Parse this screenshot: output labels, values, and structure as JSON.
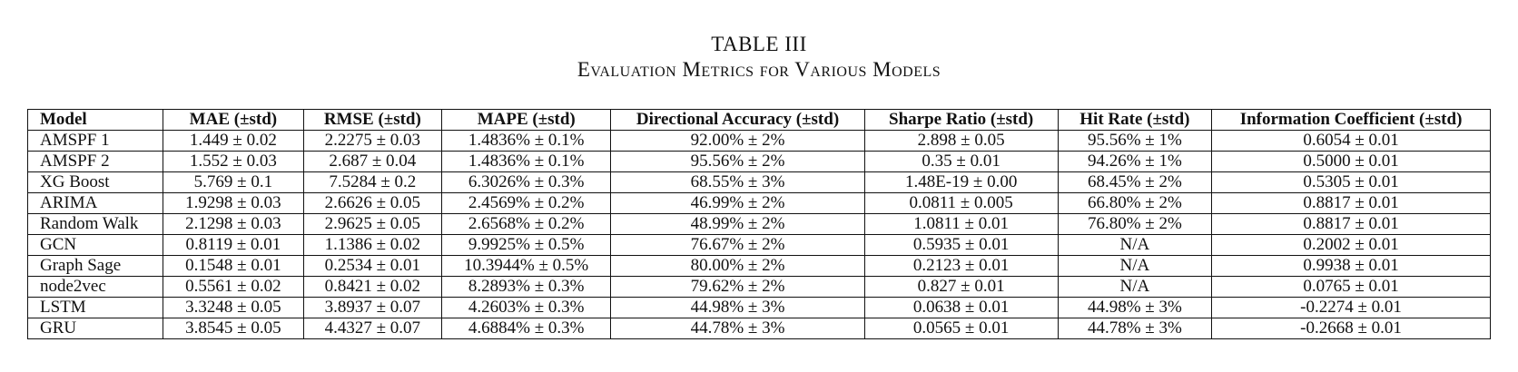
{
  "caption": {
    "number": "TABLE III",
    "title": "Evaluation Metrics for Various Models"
  },
  "table": {
    "headers": [
      "Model",
      "MAE (±std)",
      "RMSE (±std)",
      "MAPE (±std)",
      "Directional Accuracy (±std)",
      "Sharpe Ratio (±std)",
      "Hit Rate (±std)",
      "Information Coefficient (±std)"
    ],
    "rows": [
      [
        "AMSPF 1",
        "1.449 ± 0.02",
        "2.2275 ± 0.03",
        "1.4836% ± 0.1%",
        "92.00% ± 2%",
        "2.898 ± 0.05",
        "95.56% ± 1%",
        "0.6054 ± 0.01"
      ],
      [
        "AMSPF 2",
        "1.552 ± 0.03",
        "2.687 ± 0.04",
        "1.4836% ± 0.1%",
        "95.56% ± 2%",
        "0.35 ± 0.01",
        "94.26% ± 1%",
        "0.5000 ± 0.01"
      ],
      [
        "XG Boost",
        "5.769 ± 0.1",
        "7.5284 ± 0.2",
        "6.3026% ± 0.3%",
        "68.55% ± 3%",
        "1.48E-19 ± 0.00",
        "68.45% ± 2%",
        "0.5305 ± 0.01"
      ],
      [
        "ARIMA",
        "1.9298 ± 0.03",
        "2.6626 ± 0.05",
        "2.4569% ± 0.2%",
        "46.99% ± 2%",
        "0.0811 ± 0.005",
        "66.80% ± 2%",
        "0.8817 ± 0.01"
      ],
      [
        "Random Walk",
        "2.1298 ± 0.03",
        "2.9625 ± 0.05",
        "2.6568% ± 0.2%",
        "48.99% ± 2%",
        "1.0811 ± 0.01",
        "76.80% ± 2%",
        "0.8817 ± 0.01"
      ],
      [
        "GCN",
        "0.8119 ± 0.01",
        "1.1386 ± 0.02",
        "9.9925% ± 0.5%",
        "76.67% ± 2%",
        "0.5935 ± 0.01",
        "N/A",
        "0.2002 ± 0.01"
      ],
      [
        "Graph Sage",
        "0.1548 ± 0.01",
        "0.2534 ± 0.01",
        "10.3944% ± 0.5%",
        "80.00% ± 2%",
        "0.2123 ± 0.01",
        "N/A",
        "0.9938 ± 0.01"
      ],
      [
        "node2vec",
        "0.5561 ± 0.02",
        "0.8421 ± 0.02",
        "8.2893% ± 0.3%",
        "79.62% ± 2%",
        "0.827 ± 0.01",
        "N/A",
        "0.0765 ± 0.01"
      ],
      [
        "LSTM",
        "3.3248 ± 0.05",
        "3.8937 ± 0.07",
        "4.2603% ± 0.3%",
        "44.98% ± 3%",
        "0.0638 ± 0.01",
        "44.98% ± 3%",
        "-0.2274 ± 0.01"
      ],
      [
        "GRU",
        "3.8545 ± 0.05",
        "4.4327 ± 0.07",
        "4.6884% ± 0.3%",
        "44.78% ± 3%",
        "0.0565 ± 0.01",
        "44.78% ± 3%",
        "-0.2668 ± 0.01"
      ]
    ]
  }
}
